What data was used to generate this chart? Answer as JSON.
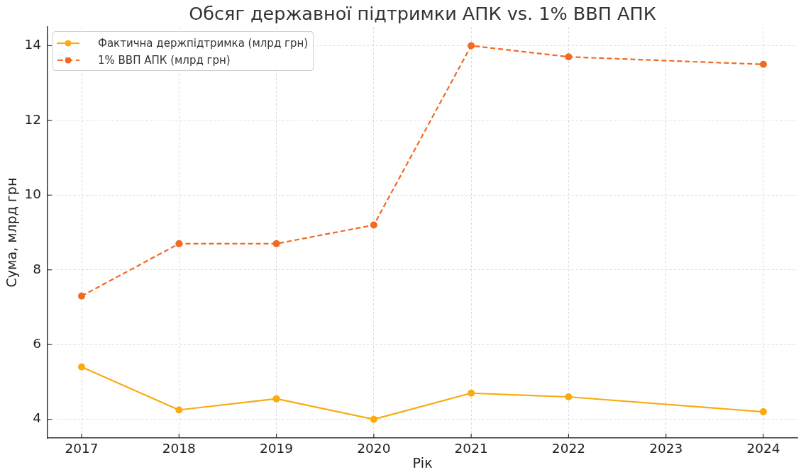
{
  "chart_data": {
    "type": "line",
    "title": "Обсяг державної підтримки АПК vs. 1% ВВП АПК",
    "xlabel": "Рік",
    "ylabel": "Сума, млрд грн",
    "x": [
      2017,
      2018,
      2019,
      2020,
      2021,
      2022,
      2024
    ],
    "series": [
      {
        "name": "Фактична держпідтримка (млрд грн)",
        "color": "#f9ab10",
        "values": [
          5.4,
          4.25,
          4.55,
          4.0,
          4.7,
          4.6,
          4.2
        ],
        "line_style": "solid"
      },
      {
        "name": "1% ВВП АПК (млрд грн)",
        "color": "#f06a23",
        "values": [
          7.3,
          8.7,
          8.7,
          9.2,
          14.0,
          13.7,
          13.5
        ],
        "line_style": "dashed"
      }
    ],
    "xlim": [
      2016.65,
      2024.35
    ],
    "xticks": [
      2017,
      2018,
      2019,
      2020,
      2021,
      2022,
      2023,
      2024
    ],
    "ylim": [
      3.5,
      14.5
    ],
    "yticks": [
      4,
      6,
      8,
      10,
      12,
      14
    ],
    "grid": true,
    "legend": "top left",
    "marker": "circle"
  }
}
